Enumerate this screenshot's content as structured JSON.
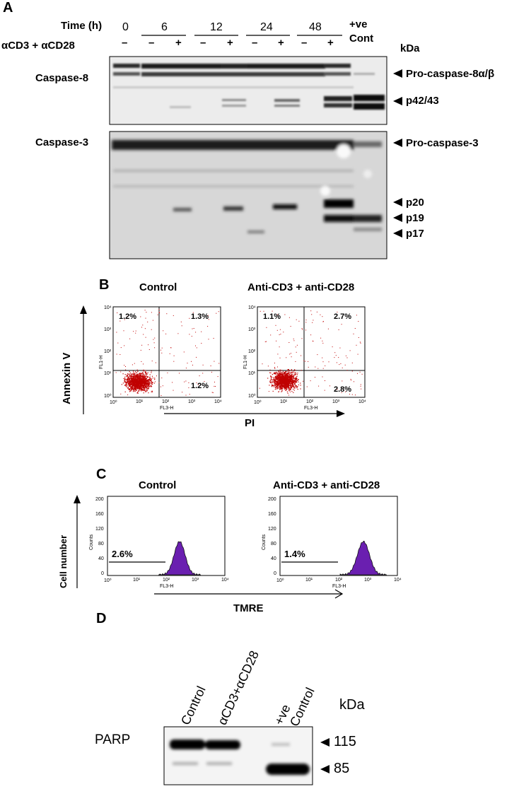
{
  "panelA": {
    "letter": "A",
    "time_label": "Time (h)",
    "treat_label": "αCD3 + αCD28",
    "times": [
      "0",
      "6",
      "12",
      "24",
      "48"
    ],
    "pos_ctrl": [
      "+ve",
      "Cont"
    ],
    "signs": [
      "–",
      "–",
      "+",
      "–",
      "+",
      "–",
      "+",
      "–",
      "+"
    ],
    "kda": "kDa",
    "blot1_label": "Caspase-8",
    "blot2_label": "Caspase-3",
    "bands1": [
      "Pro-caspase-8α/β",
      "p42/43"
    ],
    "bands2": [
      "Pro-caspase-3",
      "p20",
      "p19",
      "p17"
    ]
  },
  "panelB": {
    "letter": "B",
    "titles": [
      "Control",
      "Anti-CD3 + anti-CD28"
    ],
    "y_axis": "Annexin V",
    "x_axis": "PI",
    "plot_xlabel": "FL3-H",
    "plot_ylabel": "FL1-H",
    "ticks": [
      "10⁰",
      "10¹",
      "10²",
      "10³",
      "10⁴"
    ],
    "quadrants": [
      {
        "ul": "1.2%",
        "ur": "1.3%",
        "lr": "1.2%"
      },
      {
        "ul": "1.1%",
        "ur": "2.7%",
        "lr": "2.8%"
      }
    ],
    "dot_color": "#c00000"
  },
  "panelC": {
    "letter": "C",
    "titles": [
      "Control",
      "Anti-CD3 + anti-CD28"
    ],
    "y_axis": "Cell number",
    "x_axis": "TMRE",
    "plot_xlabel": "FL3-H",
    "plot_ylabel": "Counts",
    "yticks": [
      "0",
      "40",
      "80",
      "120",
      "160",
      "200"
    ],
    "xticks": [
      "10⁰",
      "10¹",
      "10²",
      "10³",
      "10⁴"
    ],
    "gates": [
      "2.6%",
      "1.4%"
    ],
    "fill_color": "#6a1fb0"
  },
  "panelD": {
    "letter": "D",
    "lanes": [
      "Control",
      "αCD3+αCD28",
      "+ve",
      "Control"
    ],
    "kda": "kDa",
    "blot_label": "PARP",
    "bands": [
      "115",
      "85"
    ]
  }
}
